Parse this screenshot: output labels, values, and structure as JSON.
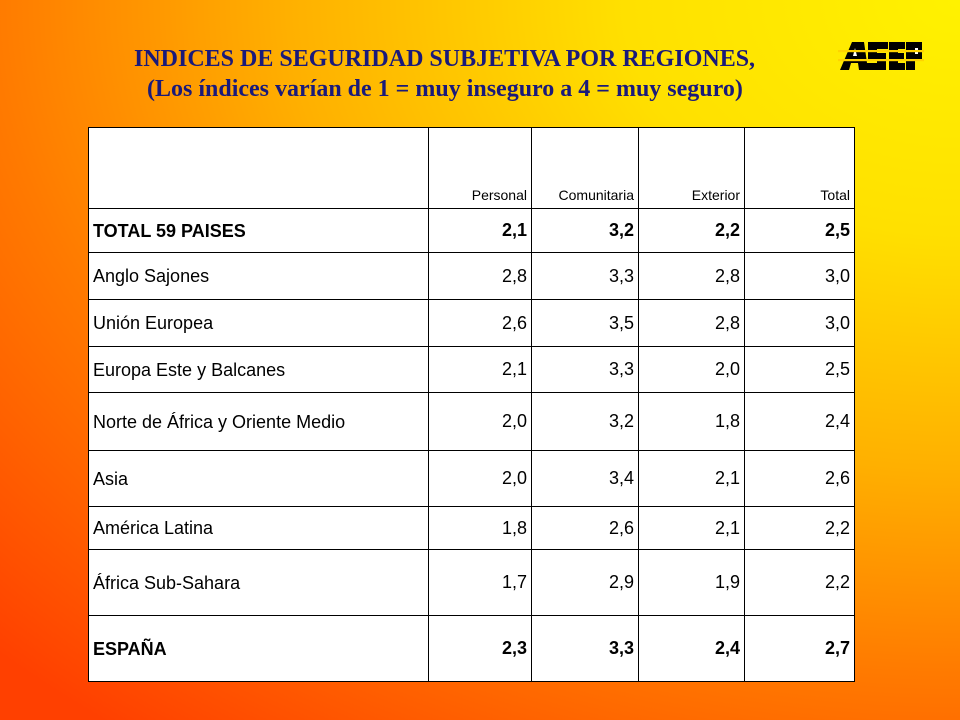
{
  "title": {
    "line1": "INDICES DE SEGURIDAD SUBJETIVA POR REGIONES,",
    "line2": "(Los índices varían de 1 = muy inseguro a 4 = muy seguro)"
  },
  "logo_text": "ASEP",
  "table": {
    "headers": [
      "",
      "Personal",
      "Comunitaria",
      "Exterior",
      "Total"
    ],
    "rows": [
      {
        "label": "TOTAL 59 PAISES",
        "values": [
          "2,1",
          "3,2",
          "2,2",
          "2,5"
        ]
      },
      {
        "label": "Anglo Sajones",
        "values": [
          "2,8",
          "3,3",
          "2,8",
          "3,0"
        ]
      },
      {
        "label": "Unión Europea",
        "values": [
          "2,6",
          "3,5",
          "2,8",
          "3,0"
        ]
      },
      {
        "label": "Europa Este y Balcanes",
        "values": [
          "2,1",
          "3,3",
          "2,0",
          "2,5"
        ]
      },
      {
        "label": "Norte de África y Oriente Medio",
        "values": [
          "2,0",
          "3,2",
          "1,8",
          "2,4"
        ]
      },
      {
        "label": "Asia",
        "values": [
          "2,0",
          "3,4",
          "2,1",
          "2,6"
        ]
      },
      {
        "label": "América Latina",
        "values": [
          "1,8",
          "2,6",
          "2,1",
          "2,2"
        ]
      },
      {
        "label": "África Sub-Sahara",
        "values": [
          "1,7",
          "2,9",
          "1,9",
          "2,2"
        ]
      },
      {
        "label": "ESPAÑA",
        "values": [
          "2,3",
          "3,3",
          "2,4",
          "2,7"
        ]
      }
    ]
  }
}
